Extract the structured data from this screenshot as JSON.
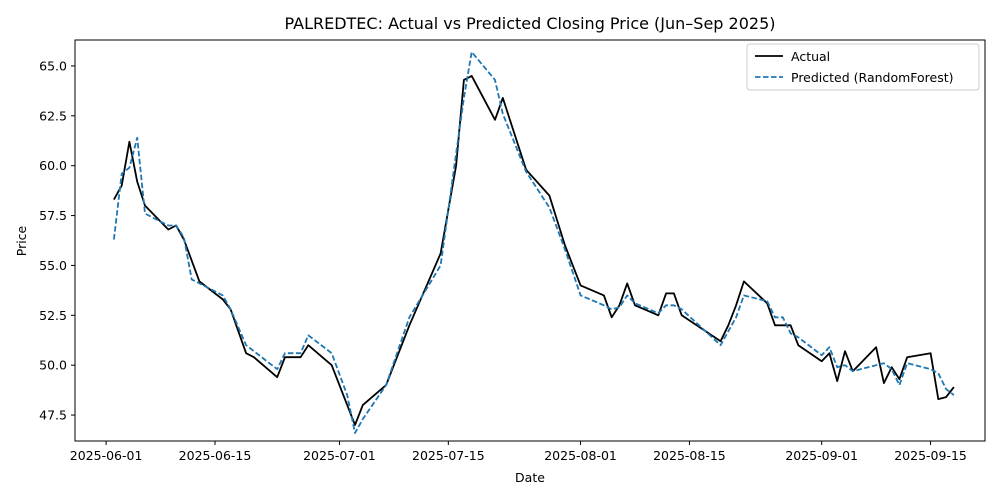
{
  "chart_data": {
    "type": "line",
    "title": "PALREDTEC: Actual vs Predicted Closing Price (Jun–Sep 2025)",
    "xlabel": "Date",
    "ylabel": "Price",
    "x_ticks": [
      "2025-06-01",
      "2025-06-15",
      "2025-07-01",
      "2025-07-15",
      "2025-08-01",
      "2025-08-15",
      "2025-09-01",
      "2025-09-15"
    ],
    "y_ticks": [
      "47.5",
      "50.0",
      "52.5",
      "55.0",
      "57.5",
      "60.0",
      "62.5",
      "65.0"
    ],
    "xlim": [
      "2025-05-28",
      "2025-09-22"
    ],
    "ylim": [
      46.2,
      66.3
    ],
    "grid": false,
    "legend_position": "top-right",
    "series": [
      {
        "name": "Actual",
        "color": "#000000",
        "style": "solid",
        "points": [
          [
            "2025-06-02",
            58.3
          ],
          [
            "2025-06-03",
            59.0
          ],
          [
            "2025-06-04",
            61.2
          ],
          [
            "2025-06-05",
            59.2
          ],
          [
            "2025-06-06",
            58.0
          ],
          [
            "2025-06-09",
            56.8
          ],
          [
            "2025-06-10",
            57.0
          ],
          [
            "2025-06-11",
            56.3
          ],
          [
            "2025-06-13",
            54.2
          ],
          [
            "2025-06-16",
            53.3
          ],
          [
            "2025-06-17",
            52.8
          ],
          [
            "2025-06-19",
            50.6
          ],
          [
            "2025-06-20",
            50.4
          ],
          [
            "2025-06-23",
            49.4
          ],
          [
            "2025-06-24",
            50.4
          ],
          [
            "2025-06-26",
            50.4
          ],
          [
            "2025-06-27",
            51.0
          ],
          [
            "2025-06-30",
            50.0
          ],
          [
            "2025-07-02",
            48.0
          ],
          [
            "2025-07-03",
            47.0
          ],
          [
            "2025-07-04",
            48.0
          ],
          [
            "2025-07-07",
            49.0
          ],
          [
            "2025-07-10",
            52.0
          ],
          [
            "2025-07-14",
            55.6
          ],
          [
            "2025-07-16",
            60.0
          ],
          [
            "2025-07-17",
            64.3
          ],
          [
            "2025-07-18",
            64.5
          ],
          [
            "2025-07-21",
            62.3
          ],
          [
            "2025-07-22",
            63.4
          ],
          [
            "2025-07-25",
            59.8
          ],
          [
            "2025-07-28",
            58.5
          ],
          [
            "2025-07-30",
            56.0
          ],
          [
            "2025-08-01",
            54.0
          ],
          [
            "2025-08-04",
            53.5
          ],
          [
            "2025-08-05",
            52.4
          ],
          [
            "2025-08-06",
            53.0
          ],
          [
            "2025-08-07",
            54.1
          ],
          [
            "2025-08-08",
            53.0
          ],
          [
            "2025-08-11",
            52.5
          ],
          [
            "2025-08-12",
            53.6
          ],
          [
            "2025-08-13",
            53.6
          ],
          [
            "2025-08-14",
            52.5
          ],
          [
            "2025-08-19",
            51.2
          ],
          [
            "2025-08-20",
            52.0
          ],
          [
            "2025-08-21",
            53.0
          ],
          [
            "2025-08-22",
            54.2
          ],
          [
            "2025-08-25",
            53.1
          ],
          [
            "2025-08-26",
            52.0
          ],
          [
            "2025-08-27",
            52.0
          ],
          [
            "2025-08-28",
            52.0
          ],
          [
            "2025-08-29",
            51.0
          ],
          [
            "2025-09-01",
            50.2
          ],
          [
            "2025-09-02",
            50.6
          ],
          [
            "2025-09-03",
            49.2
          ],
          [
            "2025-09-04",
            50.7
          ],
          [
            "2025-09-05",
            49.7
          ],
          [
            "2025-09-08",
            50.9
          ],
          [
            "2025-09-09",
            49.1
          ],
          [
            "2025-09-10",
            49.9
          ],
          [
            "2025-09-11",
            49.3
          ],
          [
            "2025-09-12",
            50.4
          ],
          [
            "2025-09-15",
            50.6
          ],
          [
            "2025-09-16",
            48.3
          ],
          [
            "2025-09-17",
            48.4
          ],
          [
            "2025-09-18",
            48.9
          ]
        ]
      },
      {
        "name": "Predicted (RandomForest)",
        "color": "#1f77b4",
        "style": "dashed",
        "points": [
          [
            "2025-06-02",
            56.3
          ],
          [
            "2025-06-03",
            59.6
          ],
          [
            "2025-06-04",
            59.9
          ],
          [
            "2025-06-05",
            61.4
          ],
          [
            "2025-06-06",
            57.6
          ],
          [
            "2025-06-09",
            57.0
          ],
          [
            "2025-06-10",
            57.0
          ],
          [
            "2025-06-11",
            56.4
          ],
          [
            "2025-06-12",
            54.3
          ],
          [
            "2025-06-16",
            53.5
          ],
          [
            "2025-06-17",
            52.8
          ],
          [
            "2025-06-19",
            51.0
          ],
          [
            "2025-06-20",
            50.7
          ],
          [
            "2025-06-23",
            49.8
          ],
          [
            "2025-06-24",
            50.6
          ],
          [
            "2025-06-26",
            50.6
          ],
          [
            "2025-06-27",
            51.5
          ],
          [
            "2025-06-30",
            50.6
          ],
          [
            "2025-07-02",
            48.5
          ],
          [
            "2025-07-03",
            46.6
          ],
          [
            "2025-07-04",
            47.3
          ],
          [
            "2025-07-07",
            49.0
          ],
          [
            "2025-07-10",
            52.4
          ],
          [
            "2025-07-14",
            55.0
          ],
          [
            "2025-07-16",
            60.6
          ],
          [
            "2025-07-17",
            63.4
          ],
          [
            "2025-07-18",
            65.7
          ],
          [
            "2025-07-21",
            64.3
          ],
          [
            "2025-07-22",
            62.6
          ],
          [
            "2025-07-25",
            59.7
          ],
          [
            "2025-07-28",
            57.9
          ],
          [
            "2025-07-30",
            55.8
          ],
          [
            "2025-08-01",
            53.5
          ],
          [
            "2025-08-04",
            53.0
          ],
          [
            "2025-08-05",
            52.8
          ],
          [
            "2025-08-06",
            52.9
          ],
          [
            "2025-08-07",
            53.5
          ],
          [
            "2025-08-08",
            53.1
          ],
          [
            "2025-08-11",
            52.6
          ],
          [
            "2025-08-12",
            53.0
          ],
          [
            "2025-08-13",
            53.0
          ],
          [
            "2025-08-14",
            52.8
          ],
          [
            "2025-08-19",
            51.0
          ],
          [
            "2025-08-20",
            51.7
          ],
          [
            "2025-08-21",
            52.4
          ],
          [
            "2025-08-22",
            53.5
          ],
          [
            "2025-08-25",
            53.2
          ],
          [
            "2025-08-26",
            52.4
          ],
          [
            "2025-08-27",
            52.4
          ],
          [
            "2025-08-28",
            51.6
          ],
          [
            "2025-08-29",
            51.4
          ],
          [
            "2025-09-01",
            50.5
          ],
          [
            "2025-09-02",
            50.9
          ],
          [
            "2025-09-03",
            49.9
          ],
          [
            "2025-09-04",
            50.0
          ],
          [
            "2025-09-05",
            49.7
          ],
          [
            "2025-09-08",
            50.0
          ],
          [
            "2025-09-09",
            50.1
          ],
          [
            "2025-09-10",
            49.8
          ],
          [
            "2025-09-11",
            49.0
          ],
          [
            "2025-09-12",
            50.1
          ],
          [
            "2025-09-15",
            49.8
          ],
          [
            "2025-09-16",
            49.6
          ],
          [
            "2025-09-17",
            48.8
          ],
          [
            "2025-09-18",
            48.5
          ]
        ]
      }
    ]
  }
}
